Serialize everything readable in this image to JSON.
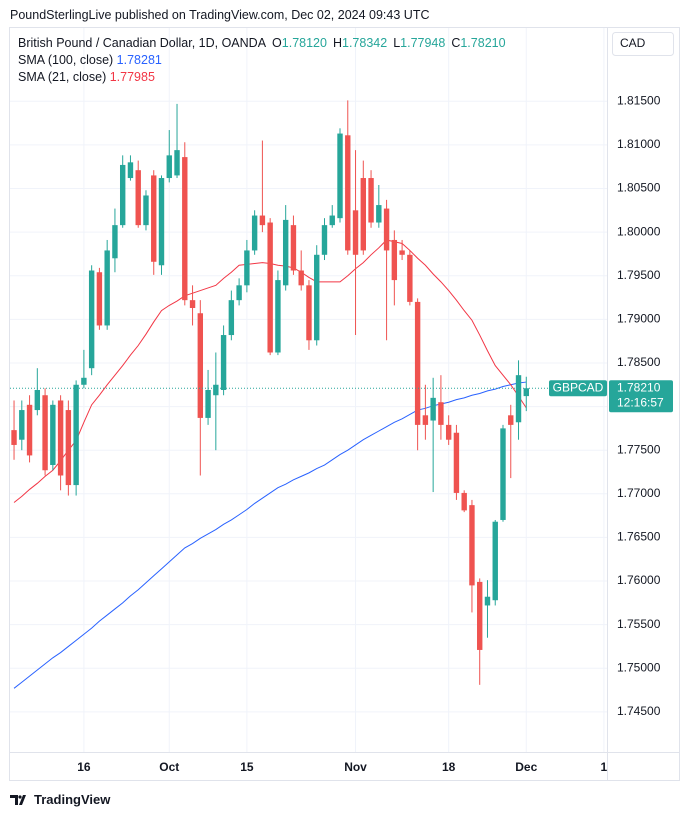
{
  "chart_data": {
    "type": "candlestick",
    "title": "PoundSterlingLive published on TradingView.com, Dec 02, 2024 09:43 UTC",
    "symbol_info": "British Pound / Canadian Dollar, 1D, OANDA",
    "ohlc_labels": [
      "O",
      "H",
      "L",
      "C"
    ],
    "ohlc_value_labels": [
      "1.78120",
      "1.78342",
      "1.77948",
      "1.78210"
    ],
    "currency": "CAD",
    "symbol_tag": "GBPCAD",
    "last_price_label": "1.78210",
    "countdown": "12:16:57",
    "footer": "TradingView",
    "up_color": "#26a69a",
    "down_color": "#ef5350",
    "open": [
      1.7773,
      1.7762,
      1.7802,
      1.7796,
      1.7813,
      1.7733,
      1.7807,
      1.7796,
      1.771,
      1.7825,
      1.7844,
      1.7954,
      1.7893,
      1.797,
      1.8008,
      1.8062,
      1.8071,
      1.8008,
      1.8065,
      1.7962,
      1.8062,
      1.8065,
      1.8086,
      1.7922,
      1.7907,
      1.7787,
      1.7813,
      1.7819,
      1.7882,
      1.7922,
      1.7939,
      1.7979,
      1.8019,
      1.8011,
      1.7862,
      1.7939,
      1.8008,
      1.7956,
      1.7939,
      1.7876,
      1.7974,
      1.8008,
      1.8016,
      1.8111,
      1.8025,
      1.8062,
      1.8062,
      1.8011,
      1.8027,
      1.7991,
      1.7979,
      1.7974,
      1.792,
      1.779,
      1.7784,
      1.7805,
      1.7779,
      1.777,
      1.7701,
      1.7687,
      1.7599,
      1.7572,
      1.7578,
      1.767,
      1.779,
      1.7782,
      1.7812
    ],
    "high": [
      1.7807,
      1.7807,
      1.7813,
      1.7844,
      1.7821,
      1.7807,
      1.7813,
      1.7807,
      1.783,
      1.7865,
      1.7962,
      1.7959,
      1.7991,
      1.8027,
      1.8088,
      1.8088,
      1.8082,
      1.8048,
      1.8071,
      1.8065,
      1.8117,
      1.8147,
      1.8103,
      1.7939,
      1.7922,
      1.7842,
      1.7862,
      1.7893,
      1.7933,
      1.7947,
      1.7991,
      1.8025,
      1.8105,
      1.8016,
      1.7956,
      1.8031,
      1.8019,
      1.7979,
      1.7945,
      1.7985,
      1.8016,
      1.8031,
      1.8119,
      1.8151,
      1.8094,
      1.8082,
      1.8071,
      1.8054,
      1.8037,
      1.8002,
      1.7991,
      1.7979,
      1.7924,
      1.7825,
      1.7833,
      1.7836,
      1.779,
      1.7779,
      1.7704,
      1.7693,
      1.7603,
      1.7601,
      1.767,
      1.7779,
      1.7802,
      1.7853,
      1.78342
    ],
    "low": [
      1.7739,
      1.775,
      1.7736,
      1.779,
      1.7721,
      1.7727,
      1.7704,
      1.7698,
      1.7698,
      1.7821,
      1.7836,
      1.7888,
      1.7888,
      1.7954,
      1.8005,
      1.8059,
      1.8005,
      1.8002,
      1.7951,
      1.7951,
      1.8057,
      1.8062,
      1.7916,
      1.7893,
      1.7721,
      1.7779,
      1.775,
      1.7813,
      1.7876,
      1.7916,
      1.7931,
      1.7974,
      1.8,
      1.7859,
      1.7859,
      1.7933,
      1.7951,
      1.7933,
      1.7865,
      1.787,
      1.7968,
      1.8005,
      1.8011,
      1.7974,
      1.7882,
      1.7974,
      1.8005,
      1.8005,
      1.7876,
      1.7916,
      1.7968,
      1.7916,
      1.775,
      1.7762,
      1.7702,
      1.7762,
      1.7756,
      1.7693,
      1.7679,
      1.7564,
      1.7481,
      1.7535,
      1.7572,
      1.7668,
      1.7718,
      1.7762,
      1.77948
    ],
    "close": [
      1.7756,
      1.7796,
      1.7744,
      1.7819,
      1.7727,
      1.7802,
      1.7721,
      1.771,
      1.7825,
      1.7833,
      1.7956,
      1.7893,
      1.7979,
      1.8008,
      1.8077,
      1.808,
      1.8008,
      1.8042,
      1.7966,
      1.8062,
      1.8088,
      1.8094,
      1.7922,
      1.7913,
      1.7787,
      1.7819,
      1.7825,
      1.7882,
      1.7922,
      1.7939,
      1.7979,
      1.8019,
      1.8008,
      1.7862,
      1.7945,
      1.8014,
      1.7956,
      1.7939,
      1.7876,
      1.7974,
      1.8008,
      1.8019,
      1.8113,
      1.7979,
      1.7974,
      1.7979,
      1.8011,
      1.8031,
      1.7979,
      1.7945,
      1.7974,
      1.792,
      1.7779,
      1.7779,
      1.781,
      1.7779,
      1.7762,
      1.7701,
      1.7681,
      1.7595,
      1.7521,
      1.7582,
      1.7668,
      1.7775,
      1.7779,
      1.7836,
      1.7821
    ],
    "series": [
      {
        "name": "SMA (100, close)",
        "color": "#2962ff",
        "value_label": "1.78281",
        "values": [
          1.7477,
          1.7484,
          1.7491,
          1.7498,
          1.7505,
          1.7512,
          1.7518,
          1.7525,
          1.7532,
          1.7539,
          1.7546,
          1.7554,
          1.7561,
          1.7568,
          1.7575,
          1.7583,
          1.759,
          1.7598,
          1.7606,
          1.7614,
          1.7622,
          1.763,
          1.7638,
          1.7643,
          1.7649,
          1.7654,
          1.7659,
          1.7665,
          1.767,
          1.7676,
          1.7682,
          1.7689,
          1.7695,
          1.7701,
          1.7707,
          1.7711,
          1.7716,
          1.772,
          1.7724,
          1.7729,
          1.7733,
          1.7739,
          1.7745,
          1.775,
          1.7756,
          1.7762,
          1.7767,
          1.7772,
          1.7777,
          1.7782,
          1.7786,
          1.7791,
          1.7796,
          1.7798,
          1.7801,
          1.7803,
          1.7805,
          1.7808,
          1.781,
          1.7813,
          1.7815,
          1.7818,
          1.782,
          1.7823,
          1.7825,
          1.7827,
          1.78281
        ]
      },
      {
        "name": "SMA (21, close)",
        "color": "#f23645",
        "value_label": "1.77985",
        "values": [
          1.769,
          1.7697,
          1.7705,
          1.7712,
          1.772,
          1.7727,
          1.7738,
          1.775,
          1.7761,
          1.7782,
          1.7802,
          1.7813,
          1.7825,
          1.7836,
          1.7847,
          1.7859,
          1.787,
          1.7883,
          1.7897,
          1.791,
          1.7916,
          1.7921,
          1.7927,
          1.793,
          1.7933,
          1.7936,
          1.7939,
          1.7947,
          1.7954,
          1.7962,
          1.7963,
          1.7964,
          1.7965,
          1.7964,
          1.7962,
          1.7961,
          1.7959,
          1.7954,
          1.7948,
          1.7943,
          1.7943,
          1.7943,
          1.7943,
          1.795,
          1.7958,
          1.7965,
          1.7974,
          1.7982,
          1.7991,
          1.7989,
          1.7987,
          1.7979,
          1.797,
          1.7962,
          1.7952,
          1.7943,
          1.7933,
          1.7922,
          1.791,
          1.7899,
          1.7882,
          1.7864,
          1.7847,
          1.7836,
          1.7825,
          1.7812,
          1.77985
        ]
      }
    ],
    "xlim": [
      -0.52,
      76.4
    ],
    "xticks": [
      {
        "value": 9,
        "label": "16"
      },
      {
        "value": 20,
        "label": "Oct"
      },
      {
        "value": 30,
        "label": "15"
      },
      {
        "value": 44,
        "label": "Nov"
      },
      {
        "value": 56,
        "label": "18"
      },
      {
        "value": 66,
        "label": "Dec"
      },
      {
        "value": 76,
        "label": "1"
      }
    ],
    "ylim": [
      1.7404,
      1.8234
    ],
    "yticks": [
      {
        "value": 1.745,
        "label": "1.74500"
      },
      {
        "value": 1.75,
        "label": "1.75000"
      },
      {
        "value": 1.755,
        "label": "1.75500"
      },
      {
        "value": 1.76,
        "label": "1.76000"
      },
      {
        "value": 1.765,
        "label": "1.76500"
      },
      {
        "value": 1.77,
        "label": "1.77000"
      },
      {
        "value": 1.775,
        "label": "1.77500"
      },
      {
        "value": 1.78,
        "label": "1.78000"
      },
      {
        "value": 1.785,
        "label": "1.78500"
      },
      {
        "value": 1.79,
        "label": "1.79000"
      },
      {
        "value": 1.795,
        "label": "1.79500"
      },
      {
        "value": 1.8,
        "label": "1.80000"
      },
      {
        "value": 1.805,
        "label": "1.80500"
      },
      {
        "value": 1.81,
        "label": "1.81000"
      },
      {
        "value": 1.815,
        "label": "1.81500"
      }
    ],
    "grid": true
  }
}
